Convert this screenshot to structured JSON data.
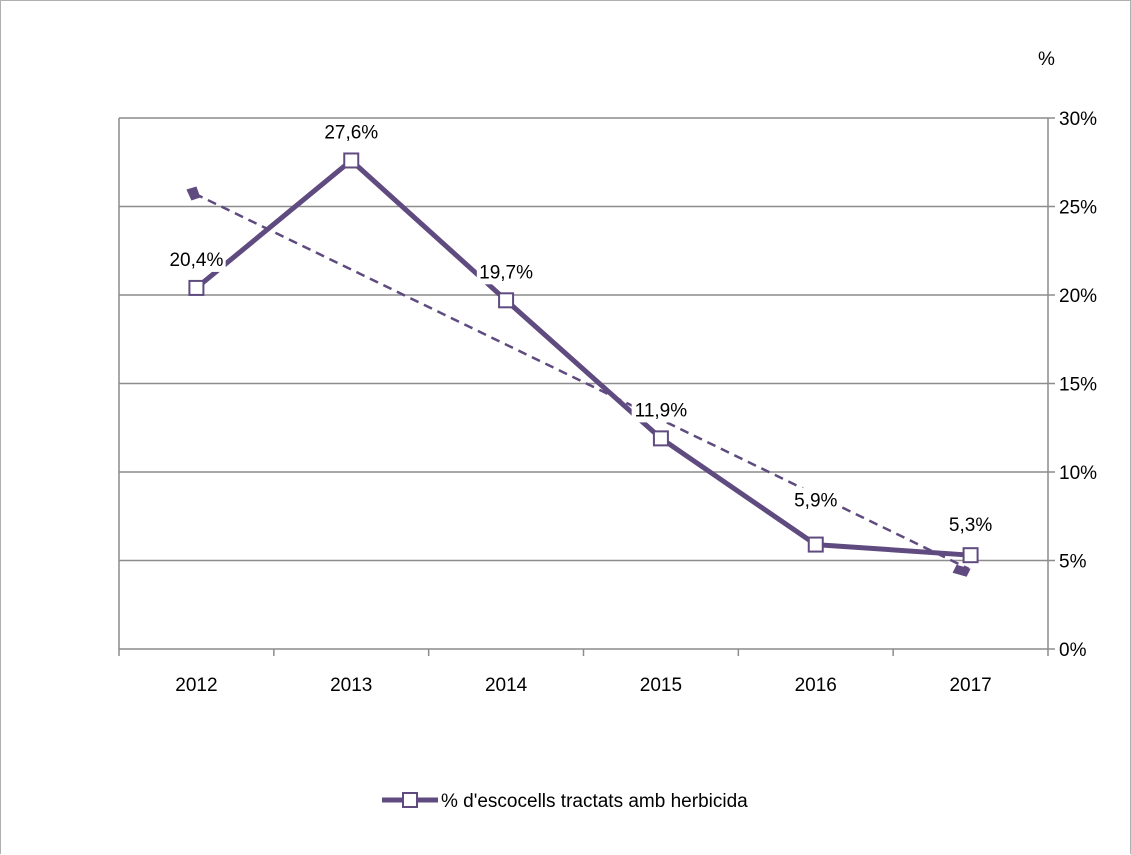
{
  "chart_data": {
    "type": "line",
    "categories": [
      "2012",
      "2013",
      "2014",
      "2015",
      "2016",
      "2017"
    ],
    "series": [
      {
        "name": "% d'escocells tractats amb herbicida",
        "values": [
          20.4,
          27.6,
          19.7,
          11.9,
          5.9,
          5.3
        ],
        "data_labels": [
          "20,4%",
          "27,6%",
          "19,7%",
          "11,9%",
          "5,9%",
          "5,3%"
        ],
        "color": "#5f4b7f",
        "marker": "square-open"
      }
    ],
    "trendline": {
      "type": "linear",
      "style": "dashed",
      "color": "#5f4b7f"
    },
    "y_unit_label": "%",
    "y_axis_position": "right",
    "ylim": [
      0,
      30
    ],
    "y_ticks": [
      0,
      5,
      10,
      15,
      20,
      25,
      30
    ],
    "y_tick_labels": [
      "0%",
      "5%",
      "10%",
      "15%",
      "20%",
      "25%",
      "30%"
    ],
    "grid": true,
    "legend_position": "bottom"
  }
}
